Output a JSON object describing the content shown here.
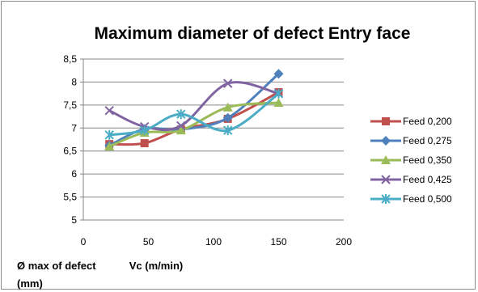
{
  "chart_data": {
    "type": "line",
    "title": "Maximum diameter of defect  Entry face",
    "xlabel": "Vc (m/min)",
    "ylabel": "Ø max of defect (mm)",
    "ylabel_lines": [
      "Ø max of defect",
      "(mm)"
    ],
    "xlim": [
      0,
      200
    ],
    "ylim": [
      5,
      8.5
    ],
    "x_ticks": [
      0,
      50,
      100,
      150,
      200
    ],
    "x_tick_labels": [
      "0",
      "50",
      "100",
      "150",
      "200"
    ],
    "y_ticks": [
      5,
      5.5,
      6,
      6.5,
      7,
      7.5,
      8,
      8.5
    ],
    "y_tick_labels": [
      "5",
      "5,5",
      "6",
      "6,5",
      "7",
      "7,5",
      "8",
      "8,5"
    ],
    "grid": "horizontal",
    "legend_position": "right",
    "series": [
      {
        "name": "Feed 0,200",
        "color": "#c0504d",
        "marker": "square",
        "x": [
          20,
          47,
          75,
          111,
          150
        ],
        "y": [
          6.65,
          6.67,
          6.97,
          7.2,
          7.78
        ]
      },
      {
        "name": "Feed 0,275",
        "color": "#4f81bd",
        "marker": "diamond",
        "x": [
          20,
          47,
          75,
          111,
          150
        ],
        "y": [
          6.62,
          6.98,
          6.97,
          7.22,
          8.18
        ]
      },
      {
        "name": "Feed 0,350",
        "color": "#9bbb59",
        "marker": "triangle",
        "x": [
          20,
          47,
          75,
          111,
          150
        ],
        "y": [
          6.6,
          6.9,
          6.95,
          7.45,
          7.55
        ]
      },
      {
        "name": "Feed 0,425",
        "color": "#8064a2",
        "marker": "x",
        "x": [
          20,
          47,
          75,
          111,
          150
        ],
        "y": [
          7.38,
          7.03,
          7.05,
          7.97,
          7.75
        ]
      },
      {
        "name": "Feed 0,500",
        "color": "#4bacc6",
        "marker": "star",
        "x": [
          20,
          47,
          75,
          111,
          150
        ],
        "y": [
          6.85,
          6.95,
          7.3,
          6.95,
          7.75
        ]
      }
    ]
  }
}
